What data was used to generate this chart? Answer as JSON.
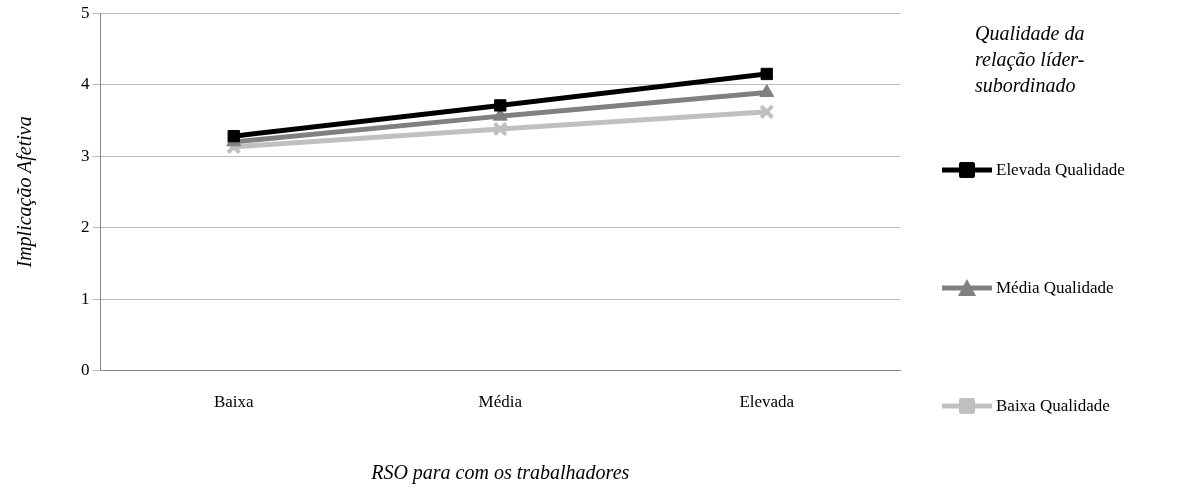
{
  "chart_data": {
    "type": "line",
    "xlabel": "RSO para com os trabalhadores",
    "ylabel": "Implicação Afetiva",
    "legend_title": "Qualidade da relação líder-subordinado",
    "categories": [
      "Baixa",
      "Média",
      "Elevada"
    ],
    "series": [
      {
        "name": "Elevada Qualidade",
        "color": "#000000",
        "marker": "square",
        "values": [
          3.28,
          3.71,
          4.15
        ]
      },
      {
        "name": "Média Qualidade",
        "color": "#808080",
        "marker": "triangle",
        "values": [
          3.2,
          3.56,
          3.89
        ]
      },
      {
        "name": "Baixa Qualidade",
        "color": "#c0c0c0",
        "marker": "cross",
        "values": [
          3.13,
          3.38,
          3.62
        ]
      }
    ],
    "ylim": [
      0,
      5
    ],
    "yticks": [
      0,
      1,
      2,
      3,
      4,
      5
    ],
    "grid": "y",
    "legend": "right"
  }
}
